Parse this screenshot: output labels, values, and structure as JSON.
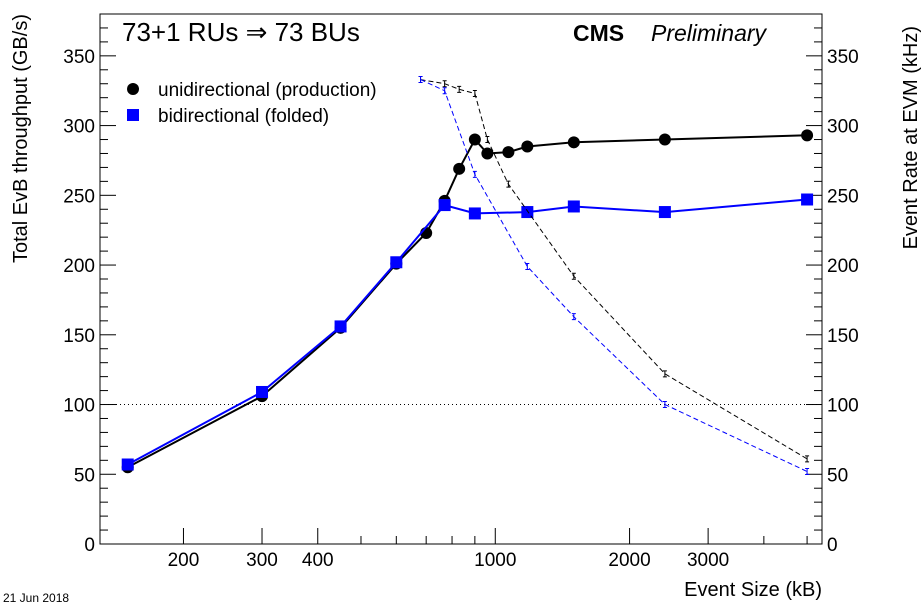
{
  "chart_data": {
    "type": "line",
    "title": "73+1 RUs ⇒ 73 BUs",
    "experiment_label": "CMS",
    "status_label": "Preliminary",
    "date_label": "21 Jun 2018",
    "xlabel": "Event Size (kB)",
    "ylabel": "Total EvB throughput (GB/s)",
    "ylabel_right": "Event Rate at EVM (kHz)",
    "xscale": "log",
    "xlim": [
      130,
      5400
    ],
    "ylim": [
      0,
      380
    ],
    "ylim_right": [
      0,
      380
    ],
    "x_tick_labels": [
      "200",
      "300",
      "400",
      "1000",
      "2000",
      "3000"
    ],
    "x_tick_values": [
      200,
      300,
      400,
      1000,
      2000,
      3000
    ],
    "y_ticks": [
      0,
      50,
      100,
      150,
      200,
      250,
      300,
      350
    ],
    "y_right_ticks": [
      0,
      50,
      100,
      150,
      200,
      250,
      300,
      350
    ],
    "reference_line_y": 100,
    "legend_position": "top-left",
    "series": [
      {
        "name": "unidirectional (production)",
        "axis": "left",
        "style": "solid",
        "marker": "circle",
        "color": "#000000",
        "x": [
          150,
          300,
          450,
          600,
          700,
          770,
          830,
          900,
          960,
          1070,
          1180,
          1500,
          2400,
          5000
        ],
        "y": [
          55,
          106,
          155,
          201,
          223,
          246,
          269,
          290,
          280,
          281,
          285,
          288,
          290,
          293
        ]
      },
      {
        "name": "bidirectional (folded)",
        "axis": "left",
        "style": "solid",
        "marker": "square",
        "color": "#0000ff",
        "x": [
          150,
          300,
          450,
          600,
          770,
          900,
          1180,
          1500,
          2400,
          5000
        ],
        "y": [
          57,
          109,
          156,
          202,
          243,
          237,
          238,
          242,
          238,
          247
        ]
      },
      {
        "axis": "right",
        "style": "dashed",
        "marker": "errorbar",
        "color": "#000000",
        "x": [
          680,
          770,
          830,
          900,
          960,
          1070,
          1500,
          2400,
          5000
        ],
        "y": [
          333,
          330,
          326,
          323,
          290,
          258,
          192,
          122,
          61
        ]
      },
      {
        "axis": "right",
        "style": "dashed",
        "marker": "errorbar",
        "color": "#0000ff",
        "x": [
          680,
          770,
          900,
          1180,
          1500,
          2400,
          5000
        ],
        "y": [
          333,
          325,
          265,
          199,
          163,
          100,
          52
        ]
      }
    ]
  }
}
